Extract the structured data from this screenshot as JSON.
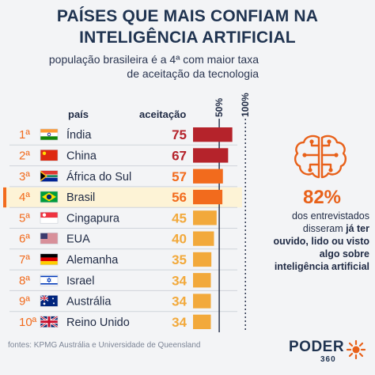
{
  "title_line1": "PAÍSES QUE MAIS CONFIAM NA",
  "title_line2": "INTELIGÊNCIA ARTIFICIAL",
  "subtitle_line1": "população brasileira é a 4ª com maior taxa",
  "subtitle_line2": "de aceitação da tecnologia",
  "column_country": "país",
  "column_acceptance": "aceitação",
  "highlight": {
    "value": "82%",
    "text_line1": "dos entrevistados",
    "text_line2_plain": "disseram ",
    "text_line2_bold": "já ter",
    "text_line3": "ouvido, lido ou visto",
    "text_line4": "algo sobre",
    "text_line5": "inteligência artificial"
  },
  "source": "fontes: KPMG Austrália e Universidade de Queensland",
  "logo": {
    "word": "PODER",
    "number": "360"
  },
  "icons": [
    "brain-circuit-icon",
    "flag-icon",
    "sun-logo-icon"
  ],
  "colors": {
    "dark_red": "#b5232b",
    "orange": "#f26b1d",
    "light_orange": "#f2a93b",
    "highlight_row": "#fdf3d6",
    "navy": "#1f3350"
  },
  "chart_data": {
    "type": "bar",
    "title": "PAÍSES QUE MAIS CONFIAM NA INTELIGÊNCIA ARTIFICIAL",
    "axis_marks": [
      "50%",
      "100%"
    ],
    "xlim": [
      0,
      100
    ],
    "highlighted_rank": "4ª",
    "rows": [
      {
        "rank": "1ª",
        "country": "Índia",
        "value": 75,
        "flag": "india",
        "color": "dark_red"
      },
      {
        "rank": "2ª",
        "country": "China",
        "value": 67,
        "flag": "china",
        "color": "dark_red"
      },
      {
        "rank": "3ª",
        "country": "África do Sul",
        "value": 57,
        "flag": "south-africa",
        "color": "orange"
      },
      {
        "rank": "4ª",
        "country": "Brasil",
        "value": 56,
        "flag": "brazil",
        "color": "orange"
      },
      {
        "rank": "5ª",
        "country": "Cingapura",
        "value": 45,
        "flag": "singapore",
        "color": "light_orange"
      },
      {
        "rank": "6ª",
        "country": "EUA",
        "value": 40,
        "flag": "usa",
        "color": "light_orange"
      },
      {
        "rank": "7ª",
        "country": "Alemanha",
        "value": 35,
        "flag": "germany",
        "color": "light_orange"
      },
      {
        "rank": "8ª",
        "country": "Israel",
        "value": 34,
        "flag": "israel",
        "color": "light_orange"
      },
      {
        "rank": "9ª",
        "country": "Austrália",
        "value": 34,
        "flag": "australia",
        "color": "light_orange"
      },
      {
        "rank": "10ª",
        "country": "Reino Unido",
        "value": 34,
        "flag": "uk",
        "color": "light_orange"
      }
    ]
  }
}
